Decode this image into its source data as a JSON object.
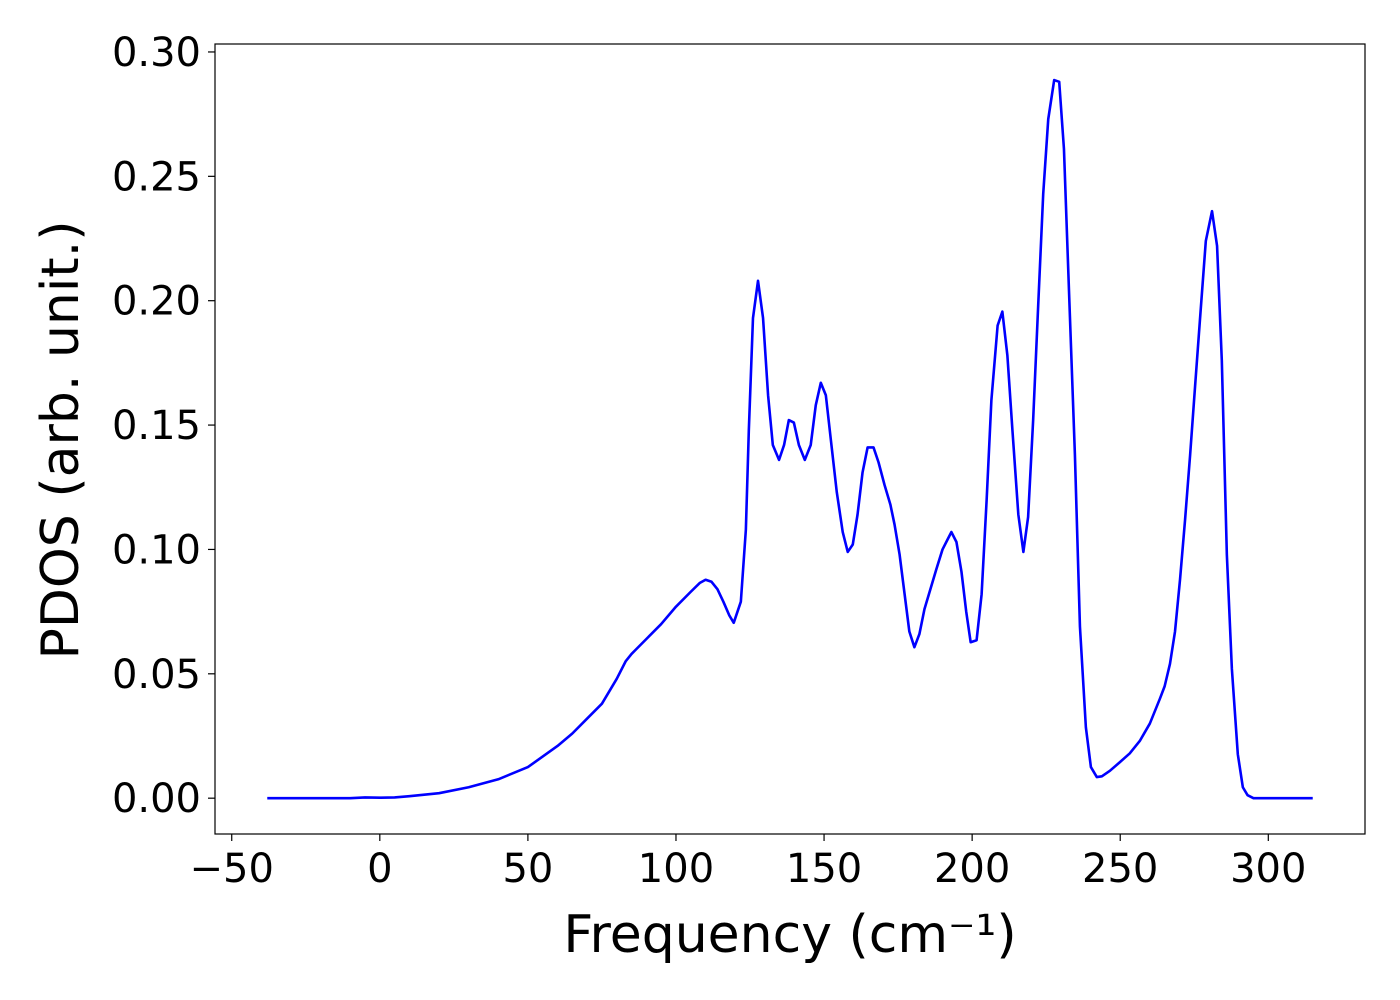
{
  "chart_data": {
    "type": "line",
    "xlabel": "Frequency (cm⁻¹)",
    "ylabel": "PDOS (arb. unit.)",
    "color": "#0000ff",
    "grid": false,
    "xlim": [
      -55.65,
      332.65
    ],
    "ylim": [
      -0.0144,
      0.3032
    ],
    "xticks": [
      {
        "value": -50,
        "label": "−50"
      },
      0,
      50,
      100,
      150,
      200,
      250,
      300
    ],
    "yticks": [
      {
        "value": 0,
        "label": "0.00"
      },
      {
        "value": 0.05,
        "label": "0.05"
      },
      {
        "value": 0.1,
        "label": "0.10"
      },
      {
        "value": 0.15,
        "label": "0.15"
      },
      {
        "value": 0.2,
        "label": "0.20"
      },
      {
        "value": 0.25,
        "label": "0.25"
      },
      {
        "value": 0.3,
        "label": "0.30"
      }
    ],
    "x": [
      -38,
      -20,
      -10,
      -5,
      0,
      5,
      10,
      20,
      30,
      40,
      50,
      60,
      65,
      70,
      75,
      80,
      83,
      85,
      90,
      95,
      100,
      105,
      108,
      110,
      112,
      114,
      116,
      118,
      119.5,
      121.9,
      123.6,
      124.6,
      126,
      127.7,
      129.4,
      131.1,
      132.7,
      134.8,
      136.5,
      138.1,
      139.8,
      141.5,
      143.5,
      145.5,
      147.2,
      148.9,
      150.6,
      152.3,
      154.3,
      156.3,
      158,
      159.7,
      161.3,
      163,
      164.7,
      166.7,
      168.4,
      170.4,
      172.4,
      173.8,
      175.5,
      177.2,
      178.8,
      180.5,
      182.2,
      183.9,
      185.9,
      187.9,
      190,
      191.7,
      193,
      194.7,
      196.4,
      198,
      199.5,
      201.5,
      203.2,
      204.9,
      206.5,
      208.6,
      210.2,
      211.9,
      213.6,
      215.6,
      217.3,
      218.9,
      220.6,
      222.3,
      224,
      225.7,
      227.7,
      229.4,
      231,
      232.7,
      234.7,
      236.4,
      238.4,
      240.1,
      242.1,
      243.8,
      246.5,
      249.9,
      253.2,
      256.6,
      260,
      263.4,
      265,
      266.8,
      268.5,
      270.2,
      271.9,
      273.6,
      275.3,
      276.9,
      278.9,
      281,
      282.7,
      284.3,
      286,
      287.7,
      289.7,
      291.4,
      293,
      295,
      315
    ],
    "values": [
      0,
      0,
      0,
      0.0003,
      0.0002,
      0.0003,
      0.0008,
      0.002,
      0.0044,
      0.0076,
      0.0125,
      0.021,
      0.026,
      0.032,
      0.038,
      0.048,
      0.055,
      0.058,
      0.064,
      0.07,
      0.077,
      0.083,
      0.0865,
      0.0878,
      0.087,
      0.084,
      0.079,
      0.0735,
      0.0705,
      0.079,
      0.108,
      0.148,
      0.193,
      0.208,
      0.193,
      0.162,
      0.142,
      0.136,
      0.142,
      0.152,
      0.151,
      0.142,
      0.136,
      0.142,
      0.158,
      0.167,
      0.162,
      0.144,
      0.123,
      0.107,
      0.099,
      0.102,
      0.114,
      0.131,
      0.141,
      0.141,
      0.135,
      0.126,
      0.118,
      0.11,
      0.098,
      0.082,
      0.067,
      0.0607,
      0.066,
      0.076,
      0.084,
      0.092,
      0.1,
      0.104,
      0.107,
      0.103,
      0.091,
      0.075,
      0.0627,
      0.0635,
      0.082,
      0.12,
      0.16,
      0.19,
      0.1956,
      0.178,
      0.148,
      0.114,
      0.099,
      0.113,
      0.152,
      0.198,
      0.243,
      0.273,
      0.2887,
      0.288,
      0.261,
      0.204,
      0.138,
      0.069,
      0.0285,
      0.0125,
      0.0085,
      0.0088,
      0.011,
      0.0145,
      0.018,
      0.023,
      0.03,
      0.04,
      0.045,
      0.054,
      0.067,
      0.088,
      0.112,
      0.138,
      0.166,
      0.192,
      0.224,
      0.236,
      0.222,
      0.176,
      0.098,
      0.052,
      0.0177,
      0.0044,
      0.0012,
      0,
      0
    ]
  }
}
